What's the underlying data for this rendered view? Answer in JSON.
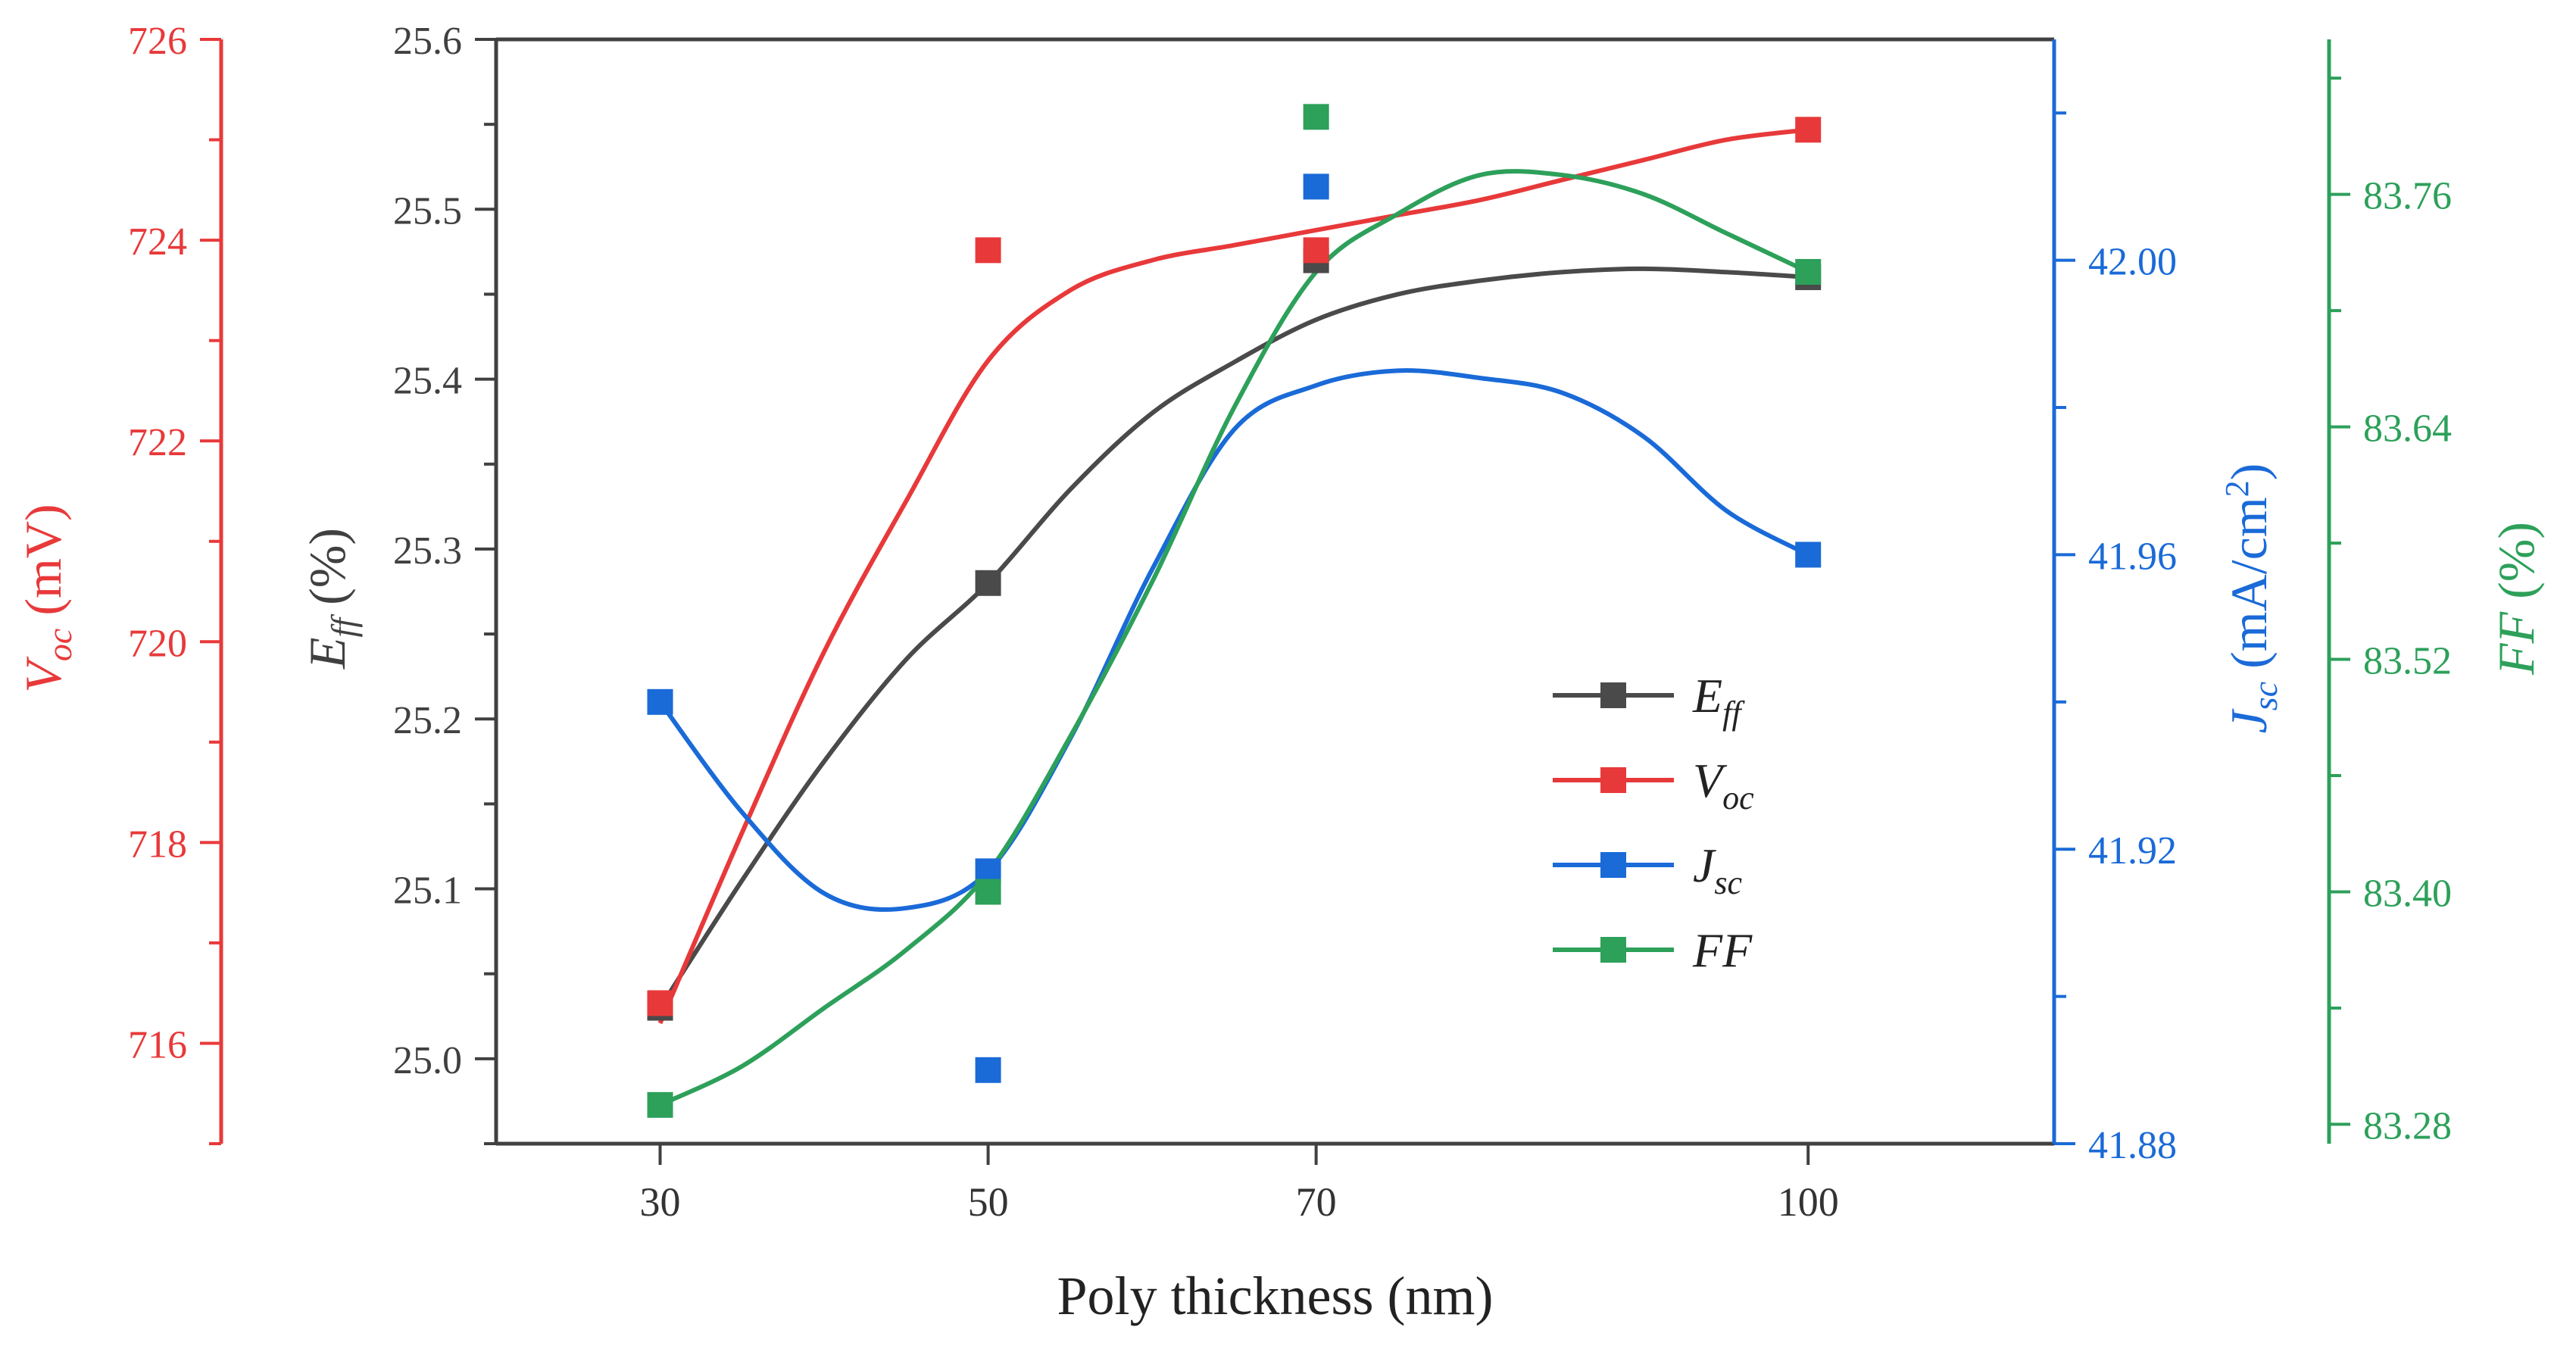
{
  "colors": {
    "eff": "#4a4a4a",
    "voc": "#e8393a",
    "jsc": "#1a6ad8",
    "ff": "#2da05a",
    "frame": "#404040"
  },
  "chart_data": {
    "type": "scatter",
    "title": "",
    "x": [
      30,
      50,
      70,
      100
    ],
    "xlabel": "Poly thickness (nm)",
    "xticks": [
      "30",
      "50",
      "70",
      "100"
    ],
    "xlim": [
      20,
      115
    ],
    "grid": false,
    "legend_position": "center-right",
    "axes": {
      "eff": {
        "label_main": "E",
        "label_sub": "ff",
        "label_unit": " (%)",
        "lim": [
          24.95,
          25.6
        ],
        "ticks": [
          "25.0",
          "25.1",
          "25.2",
          "25.3",
          "25.4",
          "25.5",
          "25.6"
        ],
        "tick_values": [
          25.0,
          25.1,
          25.2,
          25.3,
          25.4,
          25.5,
          25.6
        ],
        "side": "left-inner"
      },
      "voc": {
        "label_main": "V",
        "label_sub": "oc",
        "label_unit": " (mV)",
        "lim": [
          715,
          726
        ],
        "ticks": [
          "716",
          "718",
          "720",
          "722",
          "724",
          "726"
        ],
        "tick_values": [
          716,
          718,
          720,
          722,
          724,
          726
        ],
        "side": "left-outer"
      },
      "jsc": {
        "label_main": "J",
        "label_sub": "sc",
        "label_unit": " (mA/cm",
        "label_sup": "2",
        "label_close": ")",
        "lim": [
          41.88,
          42.03
        ],
        "ticks": [
          "41.88",
          "41.92",
          "41.96",
          "42.00"
        ],
        "tick_values": [
          41.88,
          41.92,
          41.96,
          42.0
        ],
        "side": "right-inner"
      },
      "ff": {
        "label_main": "FF",
        "label_unit": " (%)",
        "lim": [
          83.27,
          83.84
        ],
        "ticks": [
          "83.28",
          "83.40",
          "83.52",
          "83.64",
          "83.76"
        ],
        "tick_values": [
          83.28,
          83.4,
          83.52,
          83.64,
          83.76
        ],
        "side": "right-outer"
      }
    },
    "series": [
      {
        "key": "eff",
        "name_main": "E",
        "name_sub": "ff",
        "axis": "eff",
        "values": [
          25.03,
          25.28,
          25.47,
          25.46
        ],
        "curve_x": [
          30,
          35,
          40,
          45,
          50,
          55,
          60,
          65,
          70,
          75,
          80,
          85,
          90,
          95,
          100
        ],
        "curve_y": [
          25.03,
          25.105,
          25.175,
          25.235,
          25.28,
          25.335,
          25.38,
          25.41,
          25.435,
          25.45,
          25.458,
          25.463,
          25.465,
          25.463,
          25.46
        ]
      },
      {
        "key": "voc",
        "name_main": "V",
        "name_sub": "oc",
        "axis": "voc",
        "values": [
          716.4,
          723.9,
          723.9,
          725.1
        ],
        "curve_x": [
          30,
          35,
          40,
          45,
          50,
          55,
          60,
          65,
          70,
          75,
          80,
          85,
          90,
          95,
          100
        ],
        "curve_y": [
          716.2,
          718.1,
          719.9,
          721.4,
          722.8,
          723.5,
          723.8,
          723.95,
          724.1,
          724.25,
          724.4,
          724.6,
          724.8,
          725.0,
          725.1
        ]
      },
      {
        "key": "jsc",
        "name_main": "J",
        "name_sub": "sc",
        "axis": "jsc",
        "values": [
          41.94,
          41.89,
          42.01,
          41.96
        ],
        "scatter_extra": [
          {
            "x": 50,
            "y": 41.917
          }
        ],
        "curve_x": [
          30,
          35,
          40,
          45,
          50,
          55,
          60,
          65,
          70,
          75,
          80,
          85,
          90,
          95,
          100
        ],
        "curve_y": [
          41.94,
          41.925,
          41.914,
          41.912,
          41.917,
          41.935,
          41.958,
          41.977,
          41.983,
          41.985,
          41.984,
          41.982,
          41.976,
          41.966,
          41.96
        ]
      },
      {
        "key": "ff",
        "name_main": "FF",
        "axis": "ff",
        "values": [
          83.29,
          83.4,
          83.8,
          83.72
        ],
        "curve_x": [
          30,
          35,
          40,
          45,
          50,
          55,
          60,
          65,
          70,
          75,
          80,
          85,
          90,
          95,
          100
        ],
        "curve_y": [
          83.29,
          83.31,
          83.34,
          83.37,
          83.41,
          83.48,
          83.56,
          83.65,
          83.72,
          83.75,
          83.77,
          83.77,
          83.76,
          83.74,
          83.72
        ]
      }
    ]
  }
}
